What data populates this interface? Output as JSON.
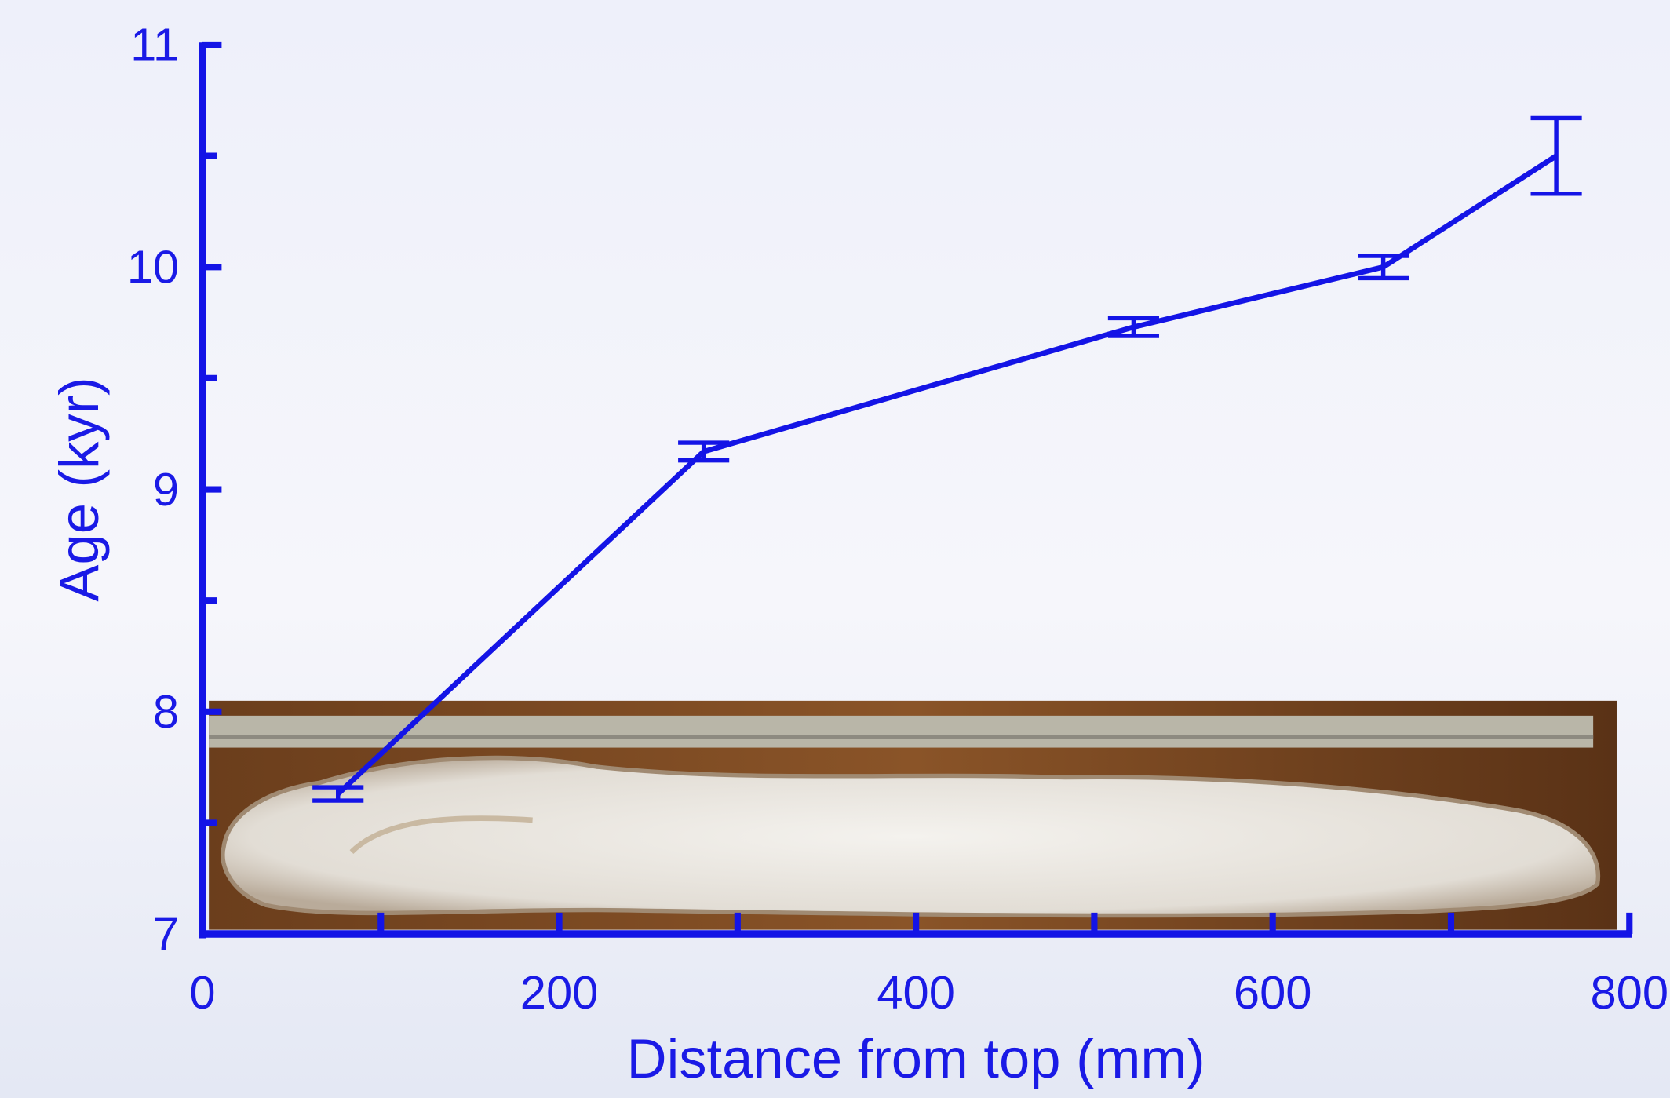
{
  "chart_data": {
    "type": "line",
    "x_label": "Distance from top (mm)",
    "y_label": "Age (kyr)",
    "x": [
      76,
      281,
      522,
      662,
      759
    ],
    "series": [
      {
        "color": "#1414e6",
        "values": [
          7.63,
          9.17,
          9.73,
          10.0,
          10.5
        ],
        "errors": [
          0.03,
          0.04,
          0.04,
          0.05,
          0.17
        ]
      }
    ],
    "xlim": [
      0,
      800
    ],
    "ylim": [
      7,
      11
    ],
    "xticks": [
      0,
      200,
      400,
      600,
      800
    ],
    "yticks": [
      7,
      8,
      9,
      10,
      11
    ],
    "xminor_ticks": [
      100,
      300,
      500,
      700
    ],
    "yminor_ticks": [
      7.5,
      8.5,
      9.5,
      10.5
    ],
    "grid": false
  }
}
